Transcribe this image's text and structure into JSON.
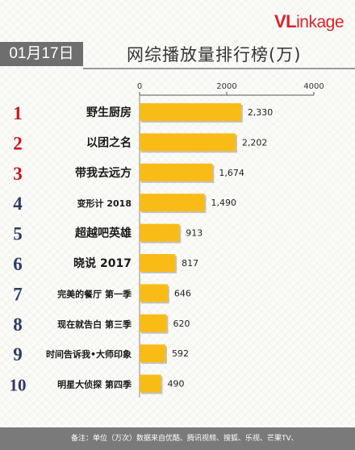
{
  "brand": {
    "logo_main": "VL",
    "logo_rest": "inkage"
  },
  "header": {
    "date": "01月17日",
    "title": "网综播放量排行榜(万)"
  },
  "footer": {
    "note": "备注：单位（万次）数据来自优酷、腾讯视频、搜狐、乐视、芒果TV、"
  },
  "chart_data": {
    "type": "bar",
    "orientation": "horizontal",
    "title": "网综播放量排行榜(万)",
    "xlim": [
      0,
      4000
    ],
    "xticks": [
      0,
      2000,
      4000
    ],
    "ranks": [
      "1",
      "2",
      "3",
      "4",
      "5",
      "6",
      "7",
      "8",
      "9",
      "10"
    ],
    "categories": [
      "野生厨房",
      "以团之名",
      "带我去远方",
      "变形计 2018",
      "超越吧英雄",
      "晓说 2017",
      "完美的餐厅 第一季",
      "现在就告白 第三季",
      "时间告诉我•大师印象",
      "明星大侦探 第四季"
    ],
    "values": [
      2330,
      2202,
      1674,
      1490,
      913,
      817,
      646,
      620,
      592,
      490
    ],
    "value_labels": [
      "2,330",
      "2,202",
      "1,674",
      "1,490",
      "913",
      "817",
      "646",
      "620",
      "592",
      "490"
    ],
    "bar_color": "#f9bb16",
    "rank_colors": {
      "top3": "#c8161d",
      "rest": "#2f3c62"
    }
  }
}
